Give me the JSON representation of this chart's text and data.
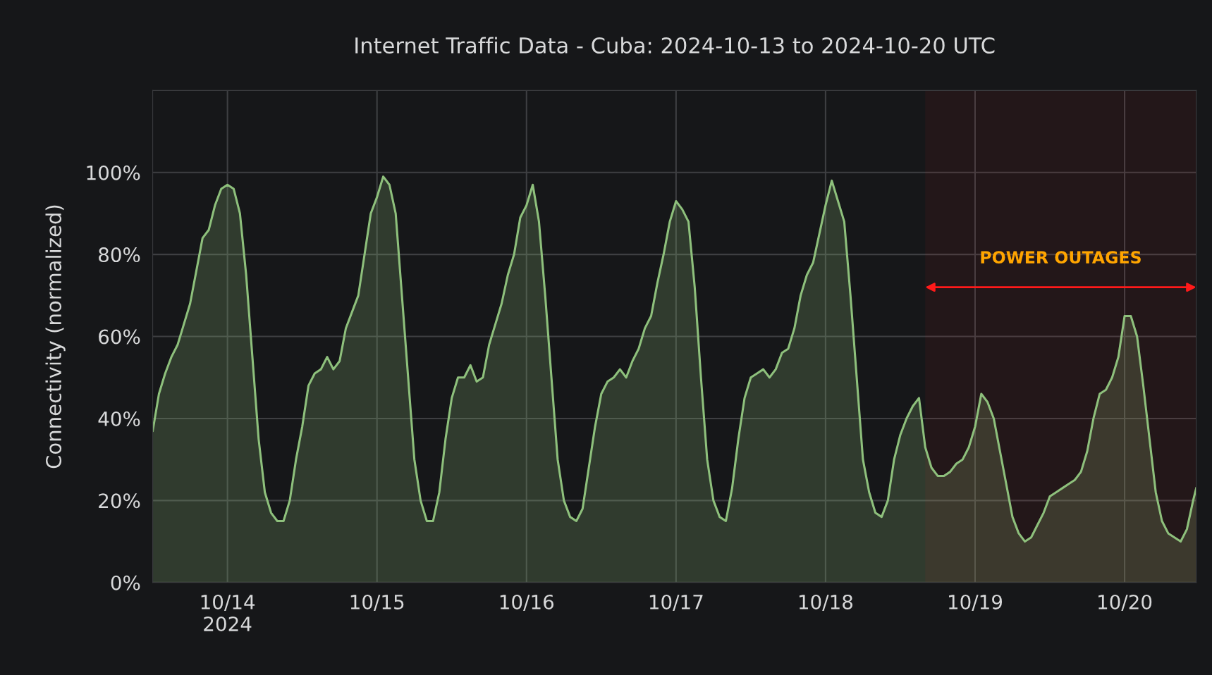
{
  "chart_data": {
    "type": "area",
    "title": "Internet Traffic Data - Cuba: 2024-10-13 to 2024-10-20 UTC",
    "ylabel": "Connectivity (normalized)",
    "x": [
      "2024-10-13T12:00",
      "2024-10-13T13:00",
      "2024-10-13T14:00",
      "2024-10-13T15:00",
      "2024-10-13T16:00",
      "2024-10-13T17:00",
      "2024-10-13T18:00",
      "2024-10-13T19:00",
      "2024-10-13T20:00",
      "2024-10-13T21:00",
      "2024-10-13T22:00",
      "2024-10-13T23:00",
      "2024-10-14T00:00",
      "2024-10-14T01:00",
      "2024-10-14T02:00",
      "2024-10-14T03:00",
      "2024-10-14T04:00",
      "2024-10-14T05:00",
      "2024-10-14T06:00",
      "2024-10-14T07:00",
      "2024-10-14T08:00",
      "2024-10-14T09:00",
      "2024-10-14T10:00",
      "2024-10-14T11:00",
      "2024-10-14T12:00",
      "2024-10-14T13:00",
      "2024-10-14T14:00",
      "2024-10-14T15:00",
      "2024-10-14T16:00",
      "2024-10-14T17:00",
      "2024-10-14T18:00",
      "2024-10-14T19:00",
      "2024-10-14T20:00",
      "2024-10-14T21:00",
      "2024-10-14T22:00",
      "2024-10-14T23:00",
      "2024-10-15T00:00",
      "2024-10-15T01:00",
      "2024-10-15T02:00",
      "2024-10-15T03:00",
      "2024-10-15T04:00",
      "2024-10-15T05:00",
      "2024-10-15T06:00",
      "2024-10-15T07:00",
      "2024-10-15T08:00",
      "2024-10-15T09:00",
      "2024-10-15T10:00",
      "2024-10-15T11:00",
      "2024-10-15T12:00",
      "2024-10-15T13:00",
      "2024-10-15T14:00",
      "2024-10-15T15:00",
      "2024-10-15T16:00",
      "2024-10-15T17:00",
      "2024-10-15T18:00",
      "2024-10-15T19:00",
      "2024-10-15T20:00",
      "2024-10-15T21:00",
      "2024-10-15T22:00",
      "2024-10-15T23:00",
      "2024-10-16T00:00",
      "2024-10-16T01:00",
      "2024-10-16T02:00",
      "2024-10-16T03:00",
      "2024-10-16T04:00",
      "2024-10-16T05:00",
      "2024-10-16T06:00",
      "2024-10-16T07:00",
      "2024-10-16T08:00",
      "2024-10-16T09:00",
      "2024-10-16T10:00",
      "2024-10-16T11:00",
      "2024-10-16T12:00",
      "2024-10-16T13:00",
      "2024-10-16T14:00",
      "2024-10-16T15:00",
      "2024-10-16T16:00",
      "2024-10-16T17:00",
      "2024-10-16T18:00",
      "2024-10-16T19:00",
      "2024-10-16T20:00",
      "2024-10-16T21:00",
      "2024-10-16T22:00",
      "2024-10-16T23:00",
      "2024-10-17T00:00",
      "2024-10-17T01:00",
      "2024-10-17T02:00",
      "2024-10-17T03:00",
      "2024-10-17T04:00",
      "2024-10-17T05:00",
      "2024-10-17T06:00",
      "2024-10-17T07:00",
      "2024-10-17T08:00",
      "2024-10-17T09:00",
      "2024-10-17T10:00",
      "2024-10-17T11:00",
      "2024-10-17T12:00",
      "2024-10-17T13:00",
      "2024-10-17T14:00",
      "2024-10-17T15:00",
      "2024-10-17T16:00",
      "2024-10-17T17:00",
      "2024-10-17T18:00",
      "2024-10-17T19:00",
      "2024-10-17T20:00",
      "2024-10-17T21:00",
      "2024-10-17T22:00",
      "2024-10-17T23:00",
      "2024-10-18T00:00",
      "2024-10-18T01:00",
      "2024-10-18T02:00",
      "2024-10-18T03:00",
      "2024-10-18T04:00",
      "2024-10-18T05:00",
      "2024-10-18T06:00",
      "2024-10-18T07:00",
      "2024-10-18T08:00",
      "2024-10-18T09:00",
      "2024-10-18T10:00",
      "2024-10-18T11:00",
      "2024-10-18T12:00",
      "2024-10-18T13:00",
      "2024-10-18T14:00",
      "2024-10-18T15:00",
      "2024-10-18T16:00",
      "2024-10-18T17:00",
      "2024-10-18T18:00",
      "2024-10-18T19:00",
      "2024-10-18T20:00",
      "2024-10-18T21:00",
      "2024-10-18T22:00",
      "2024-10-18T23:00",
      "2024-10-19T00:00",
      "2024-10-19T01:00",
      "2024-10-19T02:00",
      "2024-10-19T03:00",
      "2024-10-19T04:00",
      "2024-10-19T05:00",
      "2024-10-19T06:00",
      "2024-10-19T07:00",
      "2024-10-19T08:00",
      "2024-10-19T09:00",
      "2024-10-19T10:00",
      "2024-10-19T11:00",
      "2024-10-19T12:00",
      "2024-10-19T13:00",
      "2024-10-19T14:00",
      "2024-10-19T15:00",
      "2024-10-19T16:00",
      "2024-10-19T17:00",
      "2024-10-19T18:00",
      "2024-10-19T19:00",
      "2024-10-19T20:00",
      "2024-10-19T21:00",
      "2024-10-19T22:00",
      "2024-10-19T23:00",
      "2024-10-20T00:00",
      "2024-10-20T01:00",
      "2024-10-20T02:00",
      "2024-10-20T03:00",
      "2024-10-20T04:00",
      "2024-10-20T05:00",
      "2024-10-20T06:00",
      "2024-10-20T07:00",
      "2024-10-20T08:00",
      "2024-10-20T09:00",
      "2024-10-20T10:00",
      "2024-10-20T11:00",
      "2024-10-20T11:30"
    ],
    "series": [
      {
        "color": "#8ec07c",
        "values": [
          37,
          46,
          51,
          55,
          58,
          63,
          68,
          76,
          84,
          86,
          92,
          96,
          97,
          96,
          90,
          75,
          55,
          35,
          22,
          17,
          15,
          15,
          20,
          30,
          38,
          48,
          51,
          52,
          55,
          52,
          54,
          62,
          66,
          70,
          80,
          90,
          94,
          99,
          97,
          90,
          70,
          50,
          30,
          20,
          15,
          15,
          22,
          35,
          45,
          50,
          50,
          53,
          49,
          50,
          58,
          63,
          68,
          75,
          80,
          89,
          92,
          97,
          88,
          70,
          50,
          30,
          20,
          16,
          15,
          18,
          28,
          38,
          46,
          49,
          50,
          52,
          50,
          54,
          57,
          62,
          65,
          73,
          80,
          88,
          93,
          91,
          88,
          72,
          50,
          30,
          20,
          16,
          15,
          23,
          35,
          45,
          50,
          51,
          52,
          50,
          52,
          56,
          57,
          62,
          70,
          75,
          78,
          85,
          92,
          98,
          93,
          88,
          70,
          50,
          30,
          22,
          17,
          16,
          20,
          30,
          36,
          40,
          43,
          45,
          33,
          28,
          26,
          26,
          27,
          29,
          30,
          33,
          38,
          46,
          44,
          40,
          32,
          24,
          16,
          12,
          10,
          11,
          14,
          17,
          21,
          22,
          23,
          24,
          25,
          27,
          32,
          40,
          46,
          47,
          50,
          55,
          65,
          65,
          60,
          48,
          35,
          22,
          15,
          12,
          11,
          10,
          13,
          20,
          23
        ]
      }
    ],
    "xlim": [
      "2024-10-13T12:00",
      "2024-10-20T11:30"
    ],
    "xticks": [
      {
        "value": "2024-10-14",
        "label": "10/14\n2024"
      },
      {
        "value": "2024-10-15",
        "label": "10/15"
      },
      {
        "value": "2024-10-16",
        "label": "10/16"
      },
      {
        "value": "2024-10-17",
        "label": "10/17"
      },
      {
        "value": "2024-10-18",
        "label": "10/18"
      },
      {
        "value": "2024-10-19",
        "label": "10/19"
      },
      {
        "value": "2024-10-20",
        "label": "10/20"
      }
    ],
    "ylim": [
      0,
      120
    ],
    "yticks": [
      {
        "value": 0,
        "label": "0%"
      },
      {
        "value": 20,
        "label": "20%"
      },
      {
        "value": 40,
        "label": "40%"
      },
      {
        "value": 60,
        "label": "60%"
      },
      {
        "value": 80,
        "label": "80%"
      },
      {
        "value": 100,
        "label": "100%"
      }
    ],
    "bands": [
      {
        "axis": "x",
        "from": "2024-10-18T16:00",
        "to": "2024-10-20T11:30",
        "label": "POWER OUTAGES",
        "color": "#ff1a1a"
      }
    ],
    "grid": true
  }
}
